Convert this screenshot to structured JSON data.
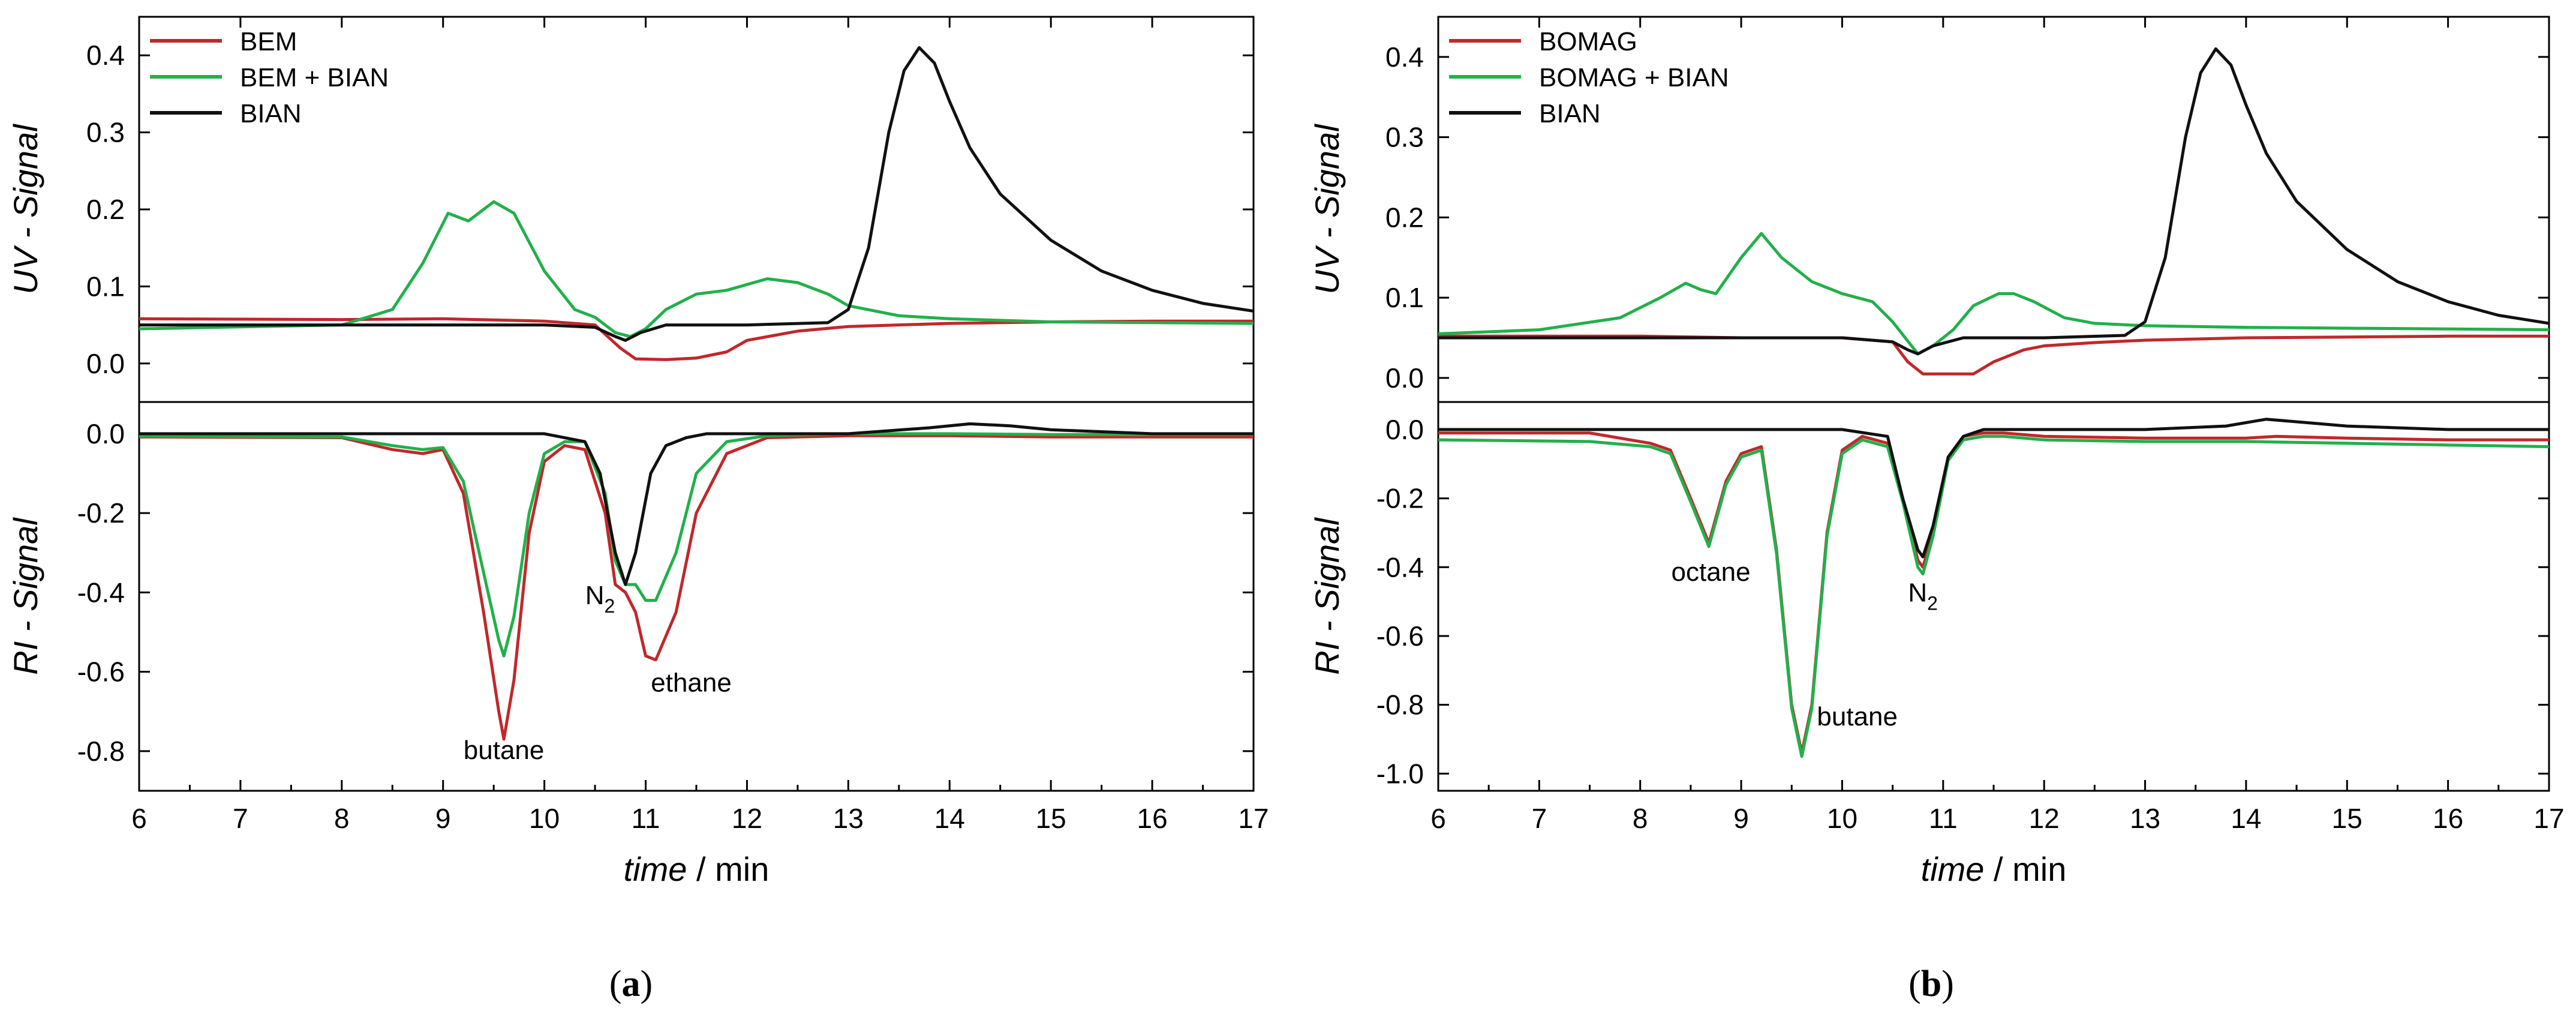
{
  "chart_data": [
    {
      "type": "line",
      "panel_label": "a",
      "xlabel_italic": "time",
      "xlabel_unit": "/ min",
      "xlim": [
        6,
        17
      ],
      "xticks": [
        6,
        7,
        8,
        9,
        10,
        11,
        12,
        13,
        14,
        15,
        16,
        17
      ],
      "upper": {
        "ylabel_italic": "UV - Signal",
        "ylim": [
          -0.05,
          0.45
        ],
        "yticks": [
          0.0,
          0.1,
          0.2,
          0.3,
          0.4
        ],
        "series": [
          {
            "name": "BEM",
            "color": "#c0282b",
            "x": [
              6,
              8,
              9,
              10,
              10.5,
              10.75,
              10.9,
              11.2,
              11.5,
              11.8,
              12,
              12.5,
              13,
              14,
              15,
              16,
              17
            ],
            "y": [
              0.058,
              0.057,
              0.058,
              0.055,
              0.05,
              0.02,
              0.006,
              0.005,
              0.007,
              0.015,
              0.03,
              0.042,
              0.048,
              0.052,
              0.054,
              0.055,
              0.055
            ]
          },
          {
            "name": "BEM + BIAN",
            "color": "#22b04b",
            "x": [
              6,
              8,
              8.5,
              8.8,
              9.05,
              9.25,
              9.5,
              9.7,
              10,
              10.3,
              10.5,
              10.7,
              10.85,
              11,
              11.2,
              11.5,
              11.8,
              12.2,
              12.5,
              12.8,
              13,
              13.5,
              14,
              15,
              16,
              17
            ],
            "y": [
              0.045,
              0.05,
              0.07,
              0.13,
              0.195,
              0.185,
              0.21,
              0.195,
              0.12,
              0.07,
              0.06,
              0.04,
              0.035,
              0.045,
              0.07,
              0.09,
              0.095,
              0.11,
              0.105,
              0.09,
              0.075,
              0.062,
              0.058,
              0.054,
              0.053,
              0.052
            ]
          },
          {
            "name": "BIAN",
            "color": "#111111",
            "x": [
              6,
              8,
              9,
              10,
              10.5,
              10.7,
              10.8,
              10.95,
              11.2,
              12,
              12.8,
              13,
              13.2,
              13.4,
              13.55,
              13.7,
              13.85,
              14,
              14.2,
              14.5,
              15,
              15.5,
              16,
              16.5,
              17
            ],
            "y": [
              0.05,
              0.05,
              0.05,
              0.05,
              0.047,
              0.035,
              0.03,
              0.04,
              0.05,
              0.05,
              0.053,
              0.07,
              0.15,
              0.3,
              0.38,
              0.41,
              0.39,
              0.34,
              0.28,
              0.22,
              0.16,
              0.12,
              0.095,
              0.078,
              0.068
            ]
          }
        ]
      },
      "lower": {
        "ylabel_italic": "RI - Signal",
        "ylim": [
          -0.9,
          0.08
        ],
        "yticks": [
          0.0,
          -0.2,
          -0.4,
          -0.6,
          -0.8
        ],
        "series": [
          {
            "name": "BEM",
            "color": "#c0282b",
            "x": [
              6,
              8,
              8.5,
              8.8,
              9,
              9.2,
              9.4,
              9.55,
              9.6,
              9.7,
              9.85,
              10,
              10.2,
              10.4,
              10.6,
              10.7,
              10.8,
              10.9,
              11,
              11.1,
              11.3,
              11.5,
              11.8,
              12.2,
              13,
              14,
              15,
              16,
              17
            ],
            "y": [
              -0.008,
              -0.01,
              -0.04,
              -0.05,
              -0.04,
              -0.15,
              -0.45,
              -0.7,
              -0.77,
              -0.62,
              -0.25,
              -0.07,
              -0.03,
              -0.04,
              -0.2,
              -0.38,
              -0.4,
              -0.45,
              -0.56,
              -0.57,
              -0.45,
              -0.2,
              -0.05,
              -0.01,
              -0.005,
              -0.005,
              -0.008,
              -0.008,
              -0.008
            ]
          },
          {
            "name": "BEM + BIAN",
            "color": "#22b04b",
            "x": [
              6,
              8,
              8.5,
              8.8,
              9,
              9.2,
              9.4,
              9.55,
              9.6,
              9.7,
              9.85,
              10,
              10.2,
              10.4,
              10.6,
              10.7,
              10.8,
              10.9,
              11,
              11.1,
              11.3,
              11.5,
              11.8,
              12.2,
              13,
              14,
              15,
              16,
              17
            ],
            "y": [
              -0.006,
              -0.008,
              -0.03,
              -0.04,
              -0.035,
              -0.12,
              -0.35,
              -0.52,
              -0.56,
              -0.46,
              -0.2,
              -0.05,
              -0.02,
              -0.02,
              -0.15,
              -0.32,
              -0.38,
              -0.38,
              -0.42,
              -0.42,
              -0.3,
              -0.1,
              -0.02,
              -0.005,
              0.0,
              0.0,
              -0.002,
              -0.002,
              -0.002
            ]
          },
          {
            "name": "BIAN",
            "color": "#111111",
            "x": [
              6,
              8,
              10,
              10.4,
              10.55,
              10.7,
              10.8,
              10.9,
              11.05,
              11.2,
              11.4,
              11.6,
              12,
              13,
              13.8,
              14.2,
              14.6,
              15,
              16,
              17
            ],
            "y": [
              0.0,
              0.0,
              0.0,
              -0.02,
              -0.1,
              -0.3,
              -0.38,
              -0.3,
              -0.1,
              -0.03,
              -0.01,
              0.0,
              0.0,
              0.0,
              0.015,
              0.025,
              0.02,
              0.01,
              0.0,
              0.0
            ]
          }
        ],
        "annotations": [
          {
            "text": "butane",
            "x": 9.6,
            "y": -0.82
          },
          {
            "text": "ethane",
            "x": 11.45,
            "y": -0.65
          },
          {
            "text": "N",
            "sub": "2",
            "x": 10.55,
            "y": -0.43
          }
        ]
      }
    },
    {
      "type": "line",
      "panel_label": "b",
      "xlabel_italic": "time",
      "xlabel_unit": "/ min",
      "xlim": [
        6,
        17
      ],
      "xticks": [
        6,
        7,
        8,
        9,
        10,
        11,
        12,
        13,
        14,
        15,
        16,
        17
      ],
      "upper": {
        "ylabel_italic": "UV - Signal",
        "ylim": [
          -0.03,
          0.45
        ],
        "yticks": [
          0.0,
          0.1,
          0.2,
          0.3,
          0.4
        ],
        "series": [
          {
            "name": "BOMAG",
            "color": "#c0282b",
            "x": [
              6,
              8,
              9,
              10,
              10.5,
              10.65,
              10.8,
              11,
              11.3,
              11.5,
              11.8,
              12,
              12.5,
              13,
              14,
              15,
              16,
              17
            ],
            "y": [
              0.052,
              0.052,
              0.05,
              0.05,
              0.045,
              0.02,
              0.005,
              0.005,
              0.005,
              0.02,
              0.035,
              0.04,
              0.044,
              0.047,
              0.05,
              0.051,
              0.052,
              0.052
            ]
          },
          {
            "name": "BOMAG + BIAN",
            "color": "#22b04b",
            "x": [
              6,
              7,
              7.8,
              8.2,
              8.45,
              8.6,
              8.75,
              9,
              9.2,
              9.4,
              9.7,
              10,
              10.3,
              10.5,
              10.75,
              10.9,
              11.1,
              11.3,
              11.55,
              11.7,
              11.9,
              12.2,
              12.5,
              13,
              14,
              15,
              16,
              17
            ],
            "y": [
              0.055,
              0.06,
              0.075,
              0.1,
              0.118,
              0.11,
              0.105,
              0.15,
              0.18,
              0.15,
              0.12,
              0.105,
              0.095,
              0.07,
              0.03,
              0.04,
              0.06,
              0.09,
              0.105,
              0.105,
              0.095,
              0.075,
              0.068,
              0.065,
              0.063,
              0.062,
              0.061,
              0.06
            ]
          },
          {
            "name": "BIAN",
            "color": "#111111",
            "x": [
              6,
              8,
              9,
              10,
              10.5,
              10.65,
              10.75,
              10.9,
              11.2,
              12,
              12.8,
              13,
              13.2,
              13.4,
              13.55,
              13.7,
              13.85,
              14,
              14.2,
              14.5,
              15,
              15.5,
              16,
              16.5,
              17
            ],
            "y": [
              0.05,
              0.05,
              0.05,
              0.05,
              0.045,
              0.035,
              0.03,
              0.04,
              0.05,
              0.05,
              0.053,
              0.07,
              0.15,
              0.3,
              0.38,
              0.41,
              0.39,
              0.34,
              0.28,
              0.22,
              0.16,
              0.12,
              0.095,
              0.078,
              0.068
            ]
          }
        ]
      },
      "lower": {
        "ylabel_italic": "RI - Signal",
        "ylim": [
          -1.05,
          0.08
        ],
        "yticks": [
          0.0,
          -0.2,
          -0.4,
          -0.6,
          -0.8,
          -1.0
        ],
        "series": [
          {
            "name": "BOMAG",
            "color": "#c0282b",
            "x": [
              6,
              7.5,
              8.1,
              8.3,
              8.5,
              8.68,
              8.85,
              9,
              9.2,
              9.35,
              9.5,
              9.6,
              9.7,
              9.85,
              10,
              10.2,
              10.45,
              10.6,
              10.75,
              10.8,
              10.9,
              11.05,
              11.2,
              11.4,
              11.6,
              12,
              13,
              14,
              14.3,
              15,
              16,
              17
            ],
            "y": [
              -0.01,
              -0.01,
              -0.04,
              -0.06,
              -0.2,
              -0.33,
              -0.15,
              -0.07,
              -0.05,
              -0.35,
              -0.8,
              -0.94,
              -0.8,
              -0.3,
              -0.06,
              -0.02,
              -0.04,
              -0.2,
              -0.38,
              -0.4,
              -0.3,
              -0.08,
              -0.02,
              -0.01,
              -0.01,
              -0.02,
              -0.025,
              -0.025,
              -0.02,
              -0.025,
              -0.03,
              -0.03
            ]
          },
          {
            "name": "BOMAG + BIAN",
            "color": "#22b04b",
            "x": [
              6,
              7.5,
              8.1,
              8.3,
              8.5,
              8.68,
              8.85,
              9,
              9.2,
              9.35,
              9.5,
              9.6,
              9.7,
              9.85,
              10,
              10.2,
              10.45,
              10.6,
              10.75,
              10.8,
              10.9,
              11.05,
              11.2,
              11.4,
              11.6,
              12,
              13,
              14,
              15,
              16,
              17
            ],
            "y": [
              -0.03,
              -0.035,
              -0.05,
              -0.07,
              -0.21,
              -0.34,
              -0.16,
              -0.08,
              -0.06,
              -0.36,
              -0.81,
              -0.95,
              -0.81,
              -0.31,
              -0.07,
              -0.03,
              -0.05,
              -0.21,
              -0.4,
              -0.42,
              -0.31,
              -0.09,
              -0.03,
              -0.02,
              -0.02,
              -0.03,
              -0.035,
              -0.035,
              -0.04,
              -0.045,
              -0.05
            ]
          },
          {
            "name": "BIAN",
            "color": "#111111",
            "x": [
              6,
              8,
              10,
              10.45,
              10.6,
              10.75,
              10.8,
              10.9,
              11.05,
              11.2,
              11.4,
              12,
              13,
              13.8,
              14.2,
              14.6,
              15,
              16,
              17
            ],
            "y": [
              0.0,
              0.0,
              0.0,
              -0.02,
              -0.2,
              -0.35,
              -0.37,
              -0.28,
              -0.08,
              -0.02,
              0.0,
              0.0,
              0.0,
              0.01,
              0.03,
              0.02,
              0.01,
              0.0,
              0.0
            ]
          }
        ],
        "annotations": [
          {
            "text": "octane",
            "x": 8.7,
            "y": -0.44
          },
          {
            "text": "butane",
            "x": 10.15,
            "y": -0.86
          },
          {
            "text": "N",
            "sub": "2",
            "x": 10.8,
            "y": -0.5
          }
        ]
      }
    }
  ]
}
